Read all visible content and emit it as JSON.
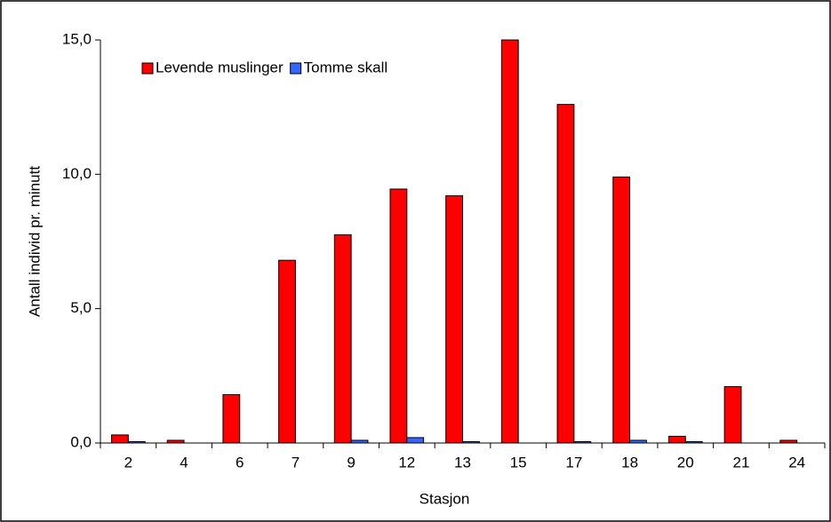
{
  "chart_data": {
    "type": "bar",
    "categories": [
      "2",
      "4",
      "6",
      "7",
      "9",
      "12",
      "13",
      "15",
      "17",
      "18",
      "20",
      "21",
      "24"
    ],
    "series": [
      {
        "name": "Levende muslinger",
        "color": "#ff0000",
        "values": [
          0.3,
          0.1,
          1.8,
          6.8,
          7.75,
          9.45,
          9.2,
          15.0,
          12.6,
          9.9,
          0.25,
          2.1,
          0.1
        ]
      },
      {
        "name": "Tomme skall",
        "color": "#3366ff",
        "values": [
          0.05,
          0,
          0,
          0,
          0.1,
          0.2,
          0.05,
          0,
          0.05,
          0.1,
          0.05,
          0,
          0
        ]
      }
    ],
    "xlabel": "Stasjon",
    "ylabel": "Antall individ pr. minutt",
    "ylim": [
      0,
      15
    ],
    "yticks": [
      {
        "value": 0,
        "label": "0,0"
      },
      {
        "value": 5,
        "label": "5,0"
      },
      {
        "value": 10,
        "label": "10,0"
      },
      {
        "value": 15,
        "label": "15,0"
      }
    ],
    "legend": "top-left",
    "grid": false
  }
}
